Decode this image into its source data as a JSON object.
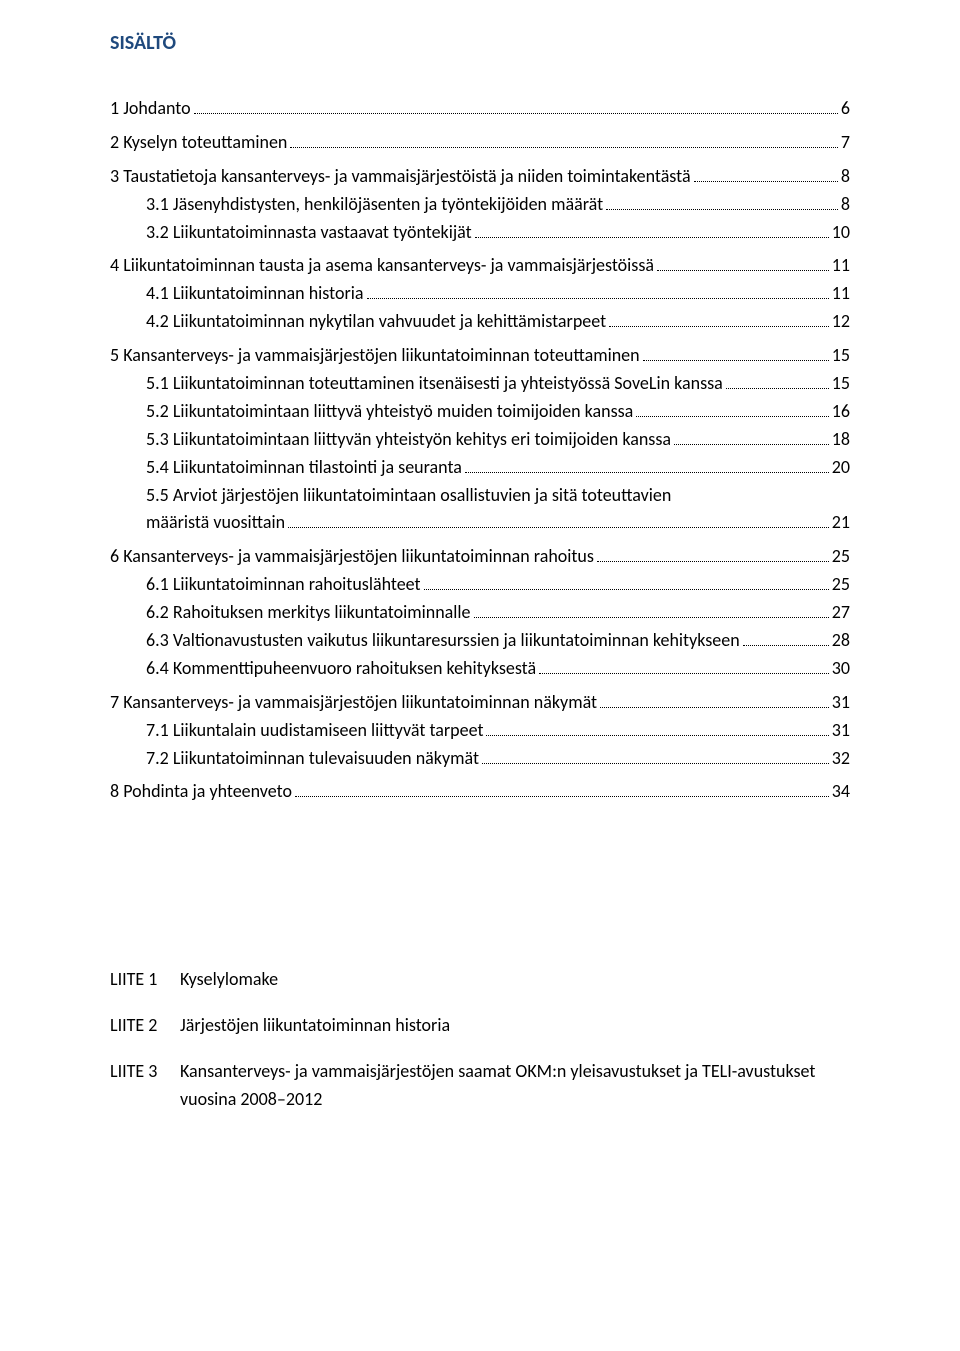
{
  "heading": "SISÄLTÖ",
  "colors": {
    "heading": "#1f497d",
    "text": "#000000",
    "background": "#ffffff",
    "leader": "#000000"
  },
  "typography": {
    "heading_fontsize": 20,
    "body_fontsize": 18,
    "font_family": "Calibri"
  },
  "toc": [
    {
      "level": 1,
      "title": "1 Johdanto",
      "page": "6"
    },
    {
      "level": 1,
      "title": "2 Kyselyn toteuttaminen",
      "page": "7"
    },
    {
      "level": 1,
      "title": "3 Taustatietoja kansanterveys- ja vammaisjärjestöistä  ja niiden toimintakentästä",
      "page": "8"
    },
    {
      "level": 2,
      "title": "3.1 Jäsenyhdistysten, henkilöjäsenten ja työntekijöiden määrät",
      "page": "8"
    },
    {
      "level": 2,
      "title": "3.2 Liikuntatoiminnasta vastaavat työntekijät",
      "page": "10"
    },
    {
      "level": 1,
      "title": "4 Liikuntatoiminnan tausta ja asema kansanterveys- ja vammaisjärjestöissä",
      "page": "11"
    },
    {
      "level": 2,
      "title": "4.1 Liikuntatoiminnan historia",
      "page": "11"
    },
    {
      "level": 2,
      "title": "4.2 Liikuntatoiminnan nykytilan vahvuudet ja kehittämistarpeet",
      "page": "12"
    },
    {
      "level": 1,
      "title": "5 Kansanterveys- ja vammaisjärjestöjen liikuntatoiminnan toteuttaminen",
      "page": "15"
    },
    {
      "level": 2,
      "title": "5.1 Liikuntatoiminnan toteuttaminen itsenäisesti ja yhteistyössä SoveLin kanssa",
      "page": "15"
    },
    {
      "level": 2,
      "title": "5.2 Liikuntatoimintaan liittyvä yhteistyö muiden toimijoiden kanssa",
      "page": "16"
    },
    {
      "level": 2,
      "title": "5.3 Liikuntatoimintaan liittyvän yhteistyön kehitys eri toimijoiden kanssa",
      "page": "18"
    },
    {
      "level": 2,
      "title": "5.4 Liikuntatoiminnan tilastointi ja seuranta",
      "page": "20"
    },
    {
      "level": 2,
      "title": "5.5 Arviot järjestöjen liikuntatoimintaan osallistuvien ja sitä toteuttavien määristä vuosittain",
      "page": "21",
      "wrap": true
    },
    {
      "level": 1,
      "title": "6 Kansanterveys- ja vammaisjärjestöjen liikuntatoiminnan rahoitus",
      "page": "25"
    },
    {
      "level": 2,
      "title": "6.1 Liikuntatoiminnan rahoituslähteet",
      "page": "25"
    },
    {
      "level": 2,
      "title": "6.2 Rahoituksen merkitys liikuntatoiminnalle",
      "page": "27"
    },
    {
      "level": 2,
      "title": "6.3 Valtionavustusten vaikutus liikuntaresurssien ja liikuntatoiminnan kehitykseen",
      "page": "28"
    },
    {
      "level": 2,
      "title": "6.4 Kommenttipuheenvuoro rahoituksen kehityksestä",
      "page": "30"
    },
    {
      "level": 1,
      "title": "7 Kansanterveys- ja vammaisjärjestöjen liikuntatoiminnan näkymät",
      "page": "31"
    },
    {
      "level": 2,
      "title": "7.1 Liikuntalain uudistamiseen liittyvät tarpeet",
      "page": "31"
    },
    {
      "level": 2,
      "title": "7.2 Liikuntatoiminnan tulevaisuuden näkymät",
      "page": "32"
    },
    {
      "level": 1,
      "title": "8 Pohdinta ja yhteenveto",
      "page": "34"
    }
  ],
  "appendix": [
    {
      "label": "LIITE 1",
      "text": "Kyselylomake"
    },
    {
      "label": "LIITE 2",
      "text": "Järjestöjen liikuntatoiminnan historia"
    },
    {
      "label": "LIITE 3",
      "text": "Kansanterveys- ja vammaisjärjestöjen saamat OKM:n yleisavustukset ja TELI-avustukset vuosina 2008–2012"
    }
  ]
}
